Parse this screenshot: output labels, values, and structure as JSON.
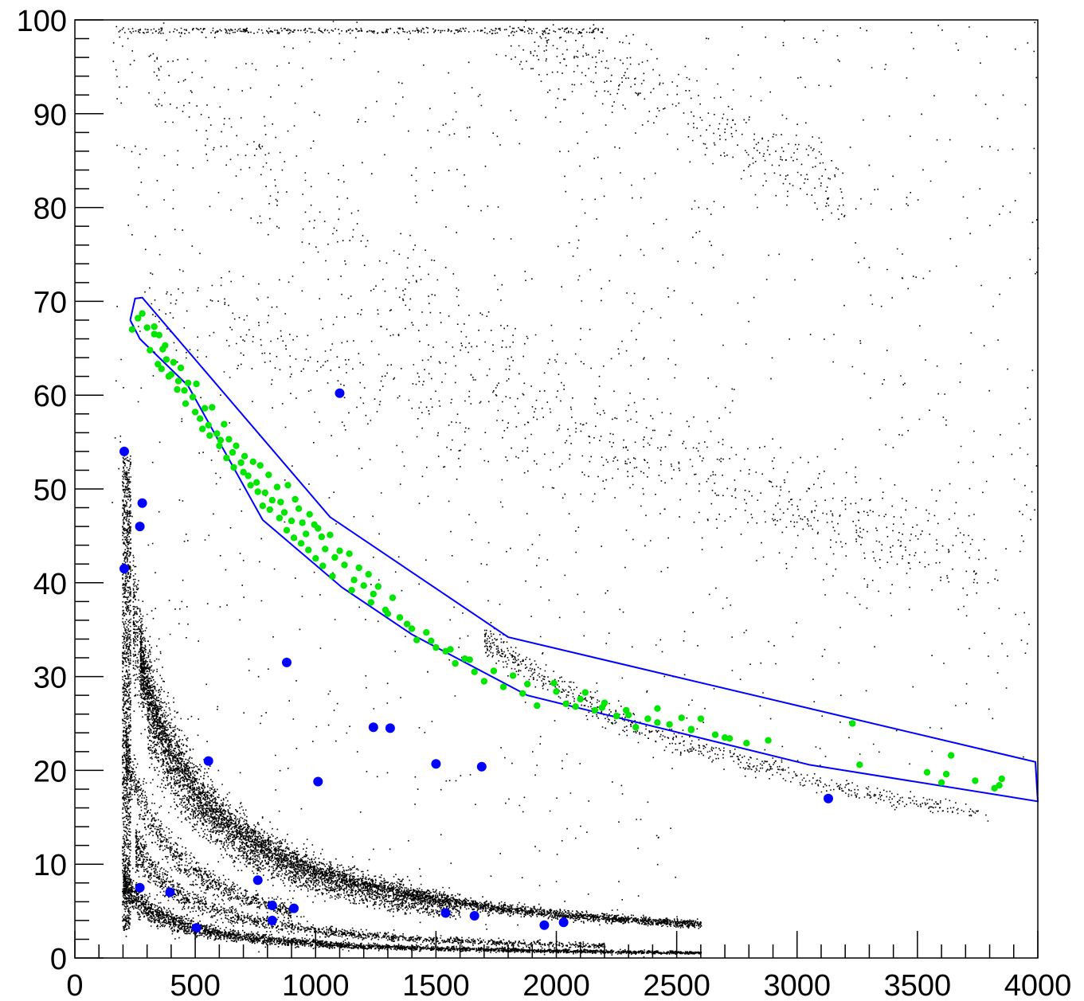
{
  "chart_data": {
    "type": "scatter",
    "title": "",
    "xlabel": "",
    "ylabel": "",
    "xlim": [
      0,
      4000
    ],
    "ylim": [
      0,
      100
    ],
    "x_ticks": [
      0,
      500,
      1000,
      1500,
      2000,
      2500,
      3000,
      3500,
      4000
    ],
    "y_ticks": [
      0,
      10,
      20,
      30,
      40,
      50,
      60,
      70,
      80,
      90,
      100
    ],
    "x_tick_labels": [
      "0",
      "500",
      "1000",
      "1500",
      "2000",
      "2500",
      "3000",
      "3500",
      "4000"
    ],
    "y_tick_labels": [
      "0",
      "10",
      "20",
      "30",
      "40",
      "50",
      "60",
      "70",
      "80",
      "90",
      "100"
    ],
    "grid": false,
    "colors": {
      "background_points": "#000000",
      "selected_points": "#00e600",
      "marker_points": "#0000ff",
      "cut_polygon": "#0000ff"
    },
    "background_bands": [
      {
        "shape": "hyperbola",
        "amplitude": 9600,
        "offset_x": 30,
        "width": 0.11,
        "x_range": [
          270,
          2600
        ],
        "count": 4200
      },
      {
        "shape": "hyperbola",
        "amplitude": 9800,
        "offset_x": 30,
        "width": 0.2,
        "x_range": [
          240,
          1600
        ],
        "count": 1800
      },
      {
        "shape": "hyperbola",
        "amplitude": 7800,
        "offset_x": 0,
        "width": 0.15,
        "x_range": [
          300,
          1600
        ],
        "count": 1200
      },
      {
        "shape": "hyperbola",
        "amplitude": 4600,
        "offset_x": 0,
        "width": 0.15,
        "x_range": [
          210,
          900
        ],
        "count": 900
      },
      {
        "shape": "hyperbola",
        "amplitude": 58000,
        "offset_x": 0,
        "width": 0.05,
        "x_range": [
          1700,
          3800
        ],
        "count": 700
      },
      {
        "shape": "hyperbola",
        "amplitude": 3000,
        "offset_x": 0,
        "width": 0.2,
        "x_range": [
          250,
          2200
        ],
        "count": 1500
      },
      {
        "shape": "hyperbola",
        "amplitude": 1600,
        "offset_x": 0,
        "width": 0.25,
        "x_range": [
          200,
          2600
        ],
        "count": 3200
      },
      {
        "shape": "vertical_strip",
        "x_range": [
          195,
          230
        ],
        "y_range": [
          3,
          54
        ],
        "count": 1300
      },
      {
        "shape": "diffuse",
        "x_range": [
          150,
          4000
        ],
        "y_range": [
          0,
          100
        ],
        "count": 1400
      },
      {
        "shape": "arc",
        "points": [
          [
            1800,
            99
          ],
          [
            2600,
            90
          ],
          [
            3200,
            81
          ]
        ],
        "width": 2,
        "count": 350
      },
      {
        "shape": "arc",
        "points": [
          [
            250,
            70
          ],
          [
            1000,
            64
          ],
          [
            2000,
            55
          ],
          [
            3000,
            48
          ],
          [
            3800,
            43
          ]
        ],
        "width": 2.5,
        "count": 500
      },
      {
        "shape": "arc",
        "points": [
          [
            150,
            99
          ],
          [
            600,
            90
          ],
          [
            1300,
            72
          ],
          [
            2200,
            58
          ],
          [
            3500,
            43
          ]
        ],
        "width": 3,
        "count": 450
      },
      {
        "shape": "horizontal_strip",
        "x_range": [
          170,
          2200
        ],
        "y_range": [
          98.6,
          99.2
        ],
        "count": 350
      }
    ],
    "cut_polygon": [
      [
        230,
        68
      ],
      [
        250,
        70.3
      ],
      [
        280,
        70.4
      ],
      [
        1060,
        47
      ],
      [
        1800,
        34.2
      ],
      [
        3990,
        20.9
      ],
      [
        4000,
        16.7
      ],
      [
        3050,
        20.6
      ],
      [
        1880,
        28
      ],
      [
        1400,
        34.5
      ],
      [
        1110,
        39.5
      ],
      [
        780,
        46.7
      ],
      [
        470,
        61
      ],
      [
        270,
        66
      ],
      [
        230,
        68
      ]
    ],
    "selected_series": [
      [
        210,
        54
      ],
      [
        238,
        67
      ],
      [
        262,
        68.2
      ],
      [
        280,
        68.7
      ],
      [
        300,
        67.2
      ],
      [
        312,
        64.8
      ],
      [
        330,
        66.5
      ],
      [
        345,
        63.3
      ],
      [
        360,
        62.8
      ],
      [
        375,
        65.3
      ],
      [
        390,
        62
      ],
      [
        410,
        63.5
      ],
      [
        425,
        60.6
      ],
      [
        440,
        62.9
      ],
      [
        455,
        60.5
      ],
      [
        470,
        61.3
      ],
      [
        490,
        59.8
      ],
      [
        505,
        61.2
      ],
      [
        520,
        57.5
      ],
      [
        540,
        58.6
      ],
      [
        555,
        56.8
      ],
      [
        570,
        58.7
      ],
      [
        590,
        55.9
      ],
      [
        605,
        55.2
      ],
      [
        620,
        56.9
      ],
      [
        640,
        55.3
      ],
      [
        655,
        53.9
      ],
      [
        670,
        54.6
      ],
      [
        690,
        52.8
      ],
      [
        705,
        53.5
      ],
      [
        720,
        51.4
      ],
      [
        740,
        52.9
      ],
      [
        755,
        50.7
      ],
      [
        770,
        52.5
      ],
      [
        790,
        49.6
      ],
      [
        805,
        51.5
      ],
      [
        820,
        48.8
      ],
      [
        840,
        50.2
      ],
      [
        855,
        48.6
      ],
      [
        870,
        47.5
      ],
      [
        885,
        50.4
      ],
      [
        900,
        46.6
      ],
      [
        915,
        48.9
      ],
      [
        930,
        47.9
      ],
      [
        945,
        46.4
      ],
      [
        960,
        45.2
      ],
      [
        975,
        47.3
      ],
      [
        995,
        46.2
      ],
      [
        1010,
        45.8
      ],
      [
        1025,
        44.9
      ],
      [
        1040,
        43.6
      ],
      [
        1060,
        45.1
      ],
      [
        1080,
        42.7
      ],
      [
        1100,
        43.4
      ],
      [
        1120,
        41.9
      ],
      [
        1140,
        43.1
      ],
      [
        1160,
        40.3
      ],
      [
        1180,
        41.6
      ],
      [
        1200,
        39.7
      ],
      [
        1220,
        40.9
      ],
      [
        1240,
        38.8
      ],
      [
        1260,
        39.6
      ],
      [
        1290,
        37.1
      ],
      [
        1320,
        38.4
      ],
      [
        1350,
        36.3
      ],
      [
        1380,
        35.6
      ],
      [
        1420,
        33.9
      ],
      [
        1460,
        34.7
      ],
      [
        1500,
        33.1
      ],
      [
        1540,
        32.7
      ],
      [
        1580,
        31.4
      ],
      [
        1620,
        31.9
      ],
      [
        1660,
        30.5
      ],
      [
        1700,
        29.5
      ],
      [
        1780,
        28.9
      ],
      [
        1820,
        30.1
      ],
      [
        1860,
        28.2
      ],
      [
        1920,
        26.9
      ],
      [
        1990,
        29.3
      ],
      [
        2040,
        27.1
      ],
      [
        2080,
        26.8
      ],
      [
        2120,
        28.3
      ],
      [
        2160,
        26.4
      ],
      [
        2200,
        27.2
      ],
      [
        2250,
        25.8
      ],
      [
        2290,
        26.4
      ],
      [
        2330,
        24.6
      ],
      [
        2380,
        25.5
      ],
      [
        2420,
        26.6
      ],
      [
        2470,
        24.9
      ],
      [
        2520,
        25.6
      ],
      [
        2560,
        24.4
      ],
      [
        2600,
        25.5
      ],
      [
        2660,
        23.8
      ],
      [
        2720,
        23.4
      ],
      [
        2790,
        22.9
      ],
      [
        2880,
        23.2
      ],
      [
        3230,
        25
      ],
      [
        3260,
        20.6
      ],
      [
        3540,
        19.8
      ],
      [
        3600,
        18.7
      ],
      [
        3620,
        19.6
      ],
      [
        3640,
        21.6
      ],
      [
        3740,
        18.9
      ],
      [
        3820,
        18.1
      ],
      [
        3840,
        18.4
      ],
      [
        3850,
        19.1
      ],
      [
        330,
        67.3
      ],
      [
        350,
        66.4
      ],
      [
        365,
        64.9
      ],
      [
        380,
        63.8
      ],
      [
        400,
        62.2
      ],
      [
        430,
        61.5
      ],
      [
        460,
        59.1
      ],
      [
        500,
        58.2
      ],
      [
        530,
        56.4
      ],
      [
        560,
        55.7
      ],
      [
        600,
        54.6
      ],
      [
        630,
        53.3
      ],
      [
        660,
        52.3
      ],
      [
        700,
        51.8
      ],
      [
        730,
        50.4
      ],
      [
        760,
        49.7
      ],
      [
        780,
        48.2
      ],
      [
        810,
        47.8
      ],
      [
        850,
        46.9
      ],
      [
        880,
        45.6
      ],
      [
        910,
        44.8
      ],
      [
        940,
        44.2
      ],
      [
        970,
        43.5
      ],
      [
        1000,
        42.6
      ],
      [
        1030,
        41.8
      ],
      [
        1070,
        40.7
      ],
      [
        1150,
        39.2
      ],
      [
        1230,
        37.9
      ],
      [
        1300,
        36.7
      ],
      [
        1400,
        35.1
      ],
      [
        1480,
        33.8
      ],
      [
        1560,
        32.9
      ],
      [
        1640,
        31.8
      ],
      [
        1740,
        30.6
      ],
      [
        1880,
        29.2
      ],
      [
        2000,
        28.4
      ],
      [
        2100,
        27.6
      ],
      [
        2190,
        26.7
      ],
      [
        2300,
        25.9
      ],
      [
        2420,
        25.1
      ],
      [
        2560,
        24.3
      ],
      [
        2700,
        23.5
      ]
    ],
    "marker_series": [
      [
        205,
        54
      ],
      [
        205,
        41.5
      ],
      [
        280,
        48.5
      ],
      [
        270,
        46
      ],
      [
        270,
        7.5
      ],
      [
        395,
        7
      ],
      [
        505,
        3.2
      ],
      [
        555,
        21
      ],
      [
        760,
        8.3
      ],
      [
        820,
        5.6
      ],
      [
        820,
        4
      ],
      [
        880,
        31.5
      ],
      [
        910,
        5.3
      ],
      [
        1010,
        18.8
      ],
      [
        1100,
        60.2
      ],
      [
        1240,
        24.6
      ],
      [
        1310,
        24.5
      ],
      [
        1500,
        20.7
      ],
      [
        1540,
        4.8
      ],
      [
        1660,
        4.5
      ],
      [
        1690,
        20.4
      ],
      [
        1950,
        3.5
      ],
      [
        2030,
        3.8
      ],
      [
        3130,
        17
      ]
    ]
  }
}
